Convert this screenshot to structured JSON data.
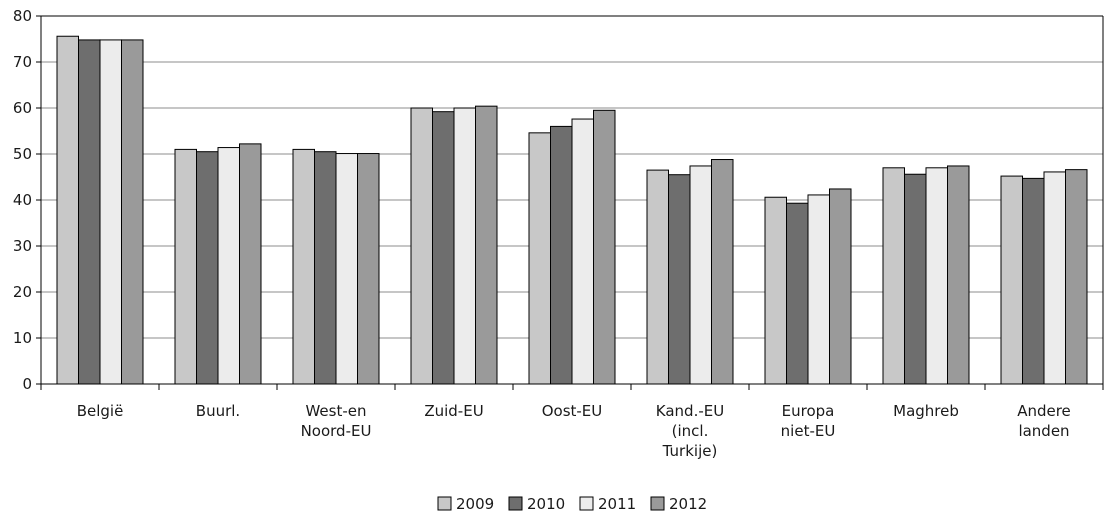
{
  "chart_data": {
    "type": "bar",
    "categories": [
      [
        "België"
      ],
      [
        "Buurl."
      ],
      [
        "West-en",
        "Noord-EU"
      ],
      [
        "Zuid-EU"
      ],
      [
        "Oost-EU"
      ],
      [
        "Kand.-EU",
        "(incl.",
        "Turkije)"
      ],
      [
        "Europa",
        "niet-EU"
      ],
      [
        "Maghreb"
      ],
      [
        "Andere",
        "landen"
      ]
    ],
    "series": [
      {
        "name": "2009",
        "color": "#c8c8c8",
        "values": [
          75.6,
          51.0,
          51.0,
          60.0,
          54.6,
          46.5,
          40.6,
          47.0,
          45.2
        ]
      },
      {
        "name": "2010",
        "color": "#6e6e6e",
        "values": [
          74.8,
          50.5,
          50.5,
          59.2,
          56.0,
          45.5,
          39.3,
          45.6,
          44.7
        ]
      },
      {
        "name": "2011",
        "color": "#ececec",
        "values": [
          74.8,
          51.4,
          50.1,
          60.0,
          57.6,
          47.4,
          41.1,
          47.0,
          46.1
        ]
      },
      {
        "name": "2012",
        "color": "#9a9a9a",
        "values": [
          74.8,
          52.2,
          50.1,
          60.4,
          59.5,
          48.8,
          42.4,
          47.4,
          46.6
        ]
      }
    ],
    "ylim": [
      0,
      80
    ],
    "yticks": [
      0,
      10,
      20,
      30,
      40,
      50,
      60,
      70,
      80
    ],
    "grid": true,
    "legend_position": "bottom"
  }
}
